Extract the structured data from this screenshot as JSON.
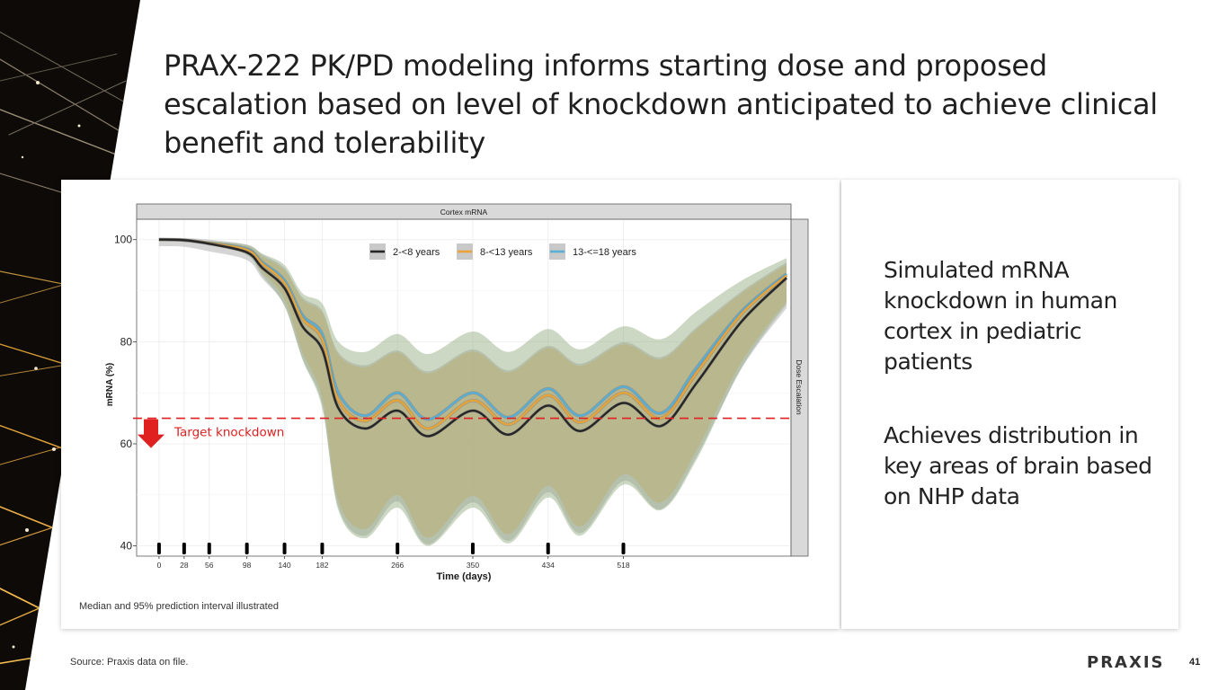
{
  "slide": {
    "title": "PRAX-222 PK/PD modeling informs starting dose and proposed escalation based on level of knockdown anticipated to achieve clinical benefit and tolerability",
    "caption": "Median and 95% prediction interval illustrated",
    "bullets": [
      "Simulated mRNA knockdown in human cortex in pediatric patients",
      "Achieves distribution in key areas of brain based on NHP data"
    ],
    "source": "Source: Praxis data on file.",
    "logo_text": "PRAXIS",
    "page_number": "41"
  },
  "chart_data": {
    "type": "line",
    "title": "Cortex mRNA",
    "facet_label": "Dose Escalation",
    "xlabel": "Time (days)",
    "ylabel": "mRNA (%)",
    "xlim": [
      -25,
      705
    ],
    "ylim": [
      38,
      104
    ],
    "y_ticks": [
      40,
      60,
      80,
      100
    ],
    "x_ticks": [
      0,
      28,
      56,
      98,
      140,
      182,
      266,
      350,
      434,
      518
    ],
    "dose_days": [
      0,
      28,
      56,
      98,
      140,
      182,
      266,
      350,
      434,
      518
    ],
    "target_knockdown": {
      "value": 65,
      "label": "Target knockdown"
    },
    "legend_position": "top-center",
    "colors": {
      "black": "#262626",
      "orange": "#e6a43a",
      "blue": "#5aaed4",
      "band_green": "#8fa97a",
      "band_orange": "#e3b97a",
      "band_gray": "#b3b3b3",
      "target": "#e02020",
      "arrow": "#e01f1f"
    },
    "x": [
      0,
      28,
      56,
      98,
      115,
      140,
      160,
      182,
      200,
      230,
      266,
      300,
      350,
      390,
      434,
      470,
      518,
      560,
      600,
      650,
      700
    ],
    "series": [
      {
        "name": "2-<8 years",
        "color": "#262626",
        "values": [
          100,
          99.9,
          99.2,
          97.5,
          94.5,
          90.5,
          83,
          78.5,
          67,
          63,
          66.5,
          61.5,
          66.5,
          61.8,
          67.5,
          62.5,
          68,
          63.5,
          72,
          84,
          92.5
        ]
      },
      {
        "name": "8-<13 years",
        "color": "#e6a43a",
        "values": [
          100,
          99.9,
          99.3,
          98,
          95.3,
          91.5,
          84.5,
          80.5,
          68.5,
          64.5,
          68.5,
          63,
          68.5,
          63.8,
          69.5,
          64.2,
          70,
          65,
          74,
          85.5,
          93
        ]
      },
      {
        "name": "13-<=18 years",
        "color": "#5aaed4",
        "values": [
          100,
          99.9,
          99.3,
          98.2,
          95.6,
          92,
          85.2,
          81.5,
          70,
          65.5,
          70,
          64.8,
          70,
          65.2,
          70.8,
          65.5,
          71.2,
          66,
          75,
          86,
          93.3
        ]
      }
    ],
    "bands": [
      {
        "name": "95% PI",
        "color": "#e3b97a",
        "upper": [
          100,
          99.9,
          99.6,
          98.6,
          96.7,
          94,
          88.3,
          85.7,
          77.5,
          75,
          77.9,
          73.8,
          78.1,
          74,
          78.8,
          75.3,
          79.5,
          76.6,
          82.5,
          89.5,
          95.2
        ],
        "lower": [
          100,
          99.9,
          99,
          97.3,
          93.7,
          88.4,
          78,
          69,
          48.9,
          43.3,
          50,
          41.6,
          49.8,
          42.3,
          51.8,
          43.8,
          54,
          48.5,
          58.9,
          76.1,
          87.9
        ]
      },
      {
        "name": "95% PI",
        "color": "#8fa97a",
        "upper": [
          100,
          99.9,
          99.7,
          99,
          97.3,
          95,
          89.5,
          87.5,
          80,
          78,
          81.5,
          77.6,
          82,
          78,
          82.5,
          78.5,
          83,
          80.5,
          86,
          92,
          96.4
        ],
        "lower": [
          100,
          99.9,
          99,
          97,
          93,
          87,
          76.5,
          67,
          47,
          41.5,
          47.5,
          40,
          47.5,
          40.5,
          49.5,
          42,
          52,
          47,
          57,
          75,
          87.4
        ]
      }
    ]
  }
}
